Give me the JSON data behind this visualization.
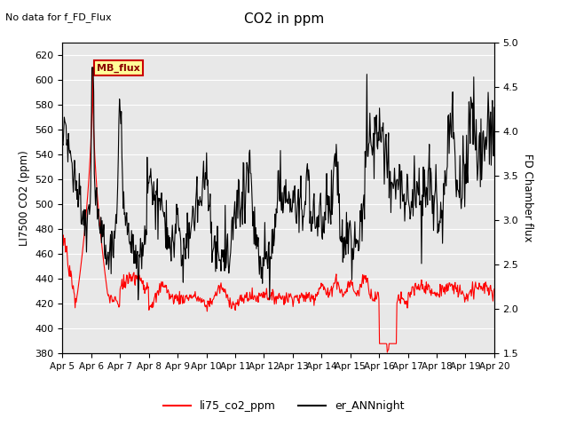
{
  "title": "CO2 in ppm",
  "top_left_text": "No data for f_FD_Flux",
  "ylabel_left": "LI7500 CO2 (ppm)",
  "ylabel_right": "FD Chamber flux",
  "ylim_left": [
    380,
    630
  ],
  "ylim_right": [
    1.5,
    5.0
  ],
  "yticks_left": [
    380,
    400,
    420,
    440,
    460,
    480,
    500,
    520,
    540,
    560,
    580,
    600,
    620
  ],
  "yticks_right": [
    1.5,
    2.0,
    2.5,
    3.0,
    3.5,
    4.0,
    4.5,
    5.0
  ],
  "xtick_labels": [
    "Apr 5",
    "Apr 6",
    "Apr 7",
    "Apr 8",
    "Apr 9",
    "Apr 10",
    "Apr 11",
    "Apr 12",
    "Apr 13",
    "Apr 14",
    "Apr 15",
    "Apr 16",
    "Apr 17",
    "Apr 18",
    "Apr 19",
    "Apr 20"
  ],
  "legend_labels": [
    "li75_co2_ppm",
    "er_ANNnight"
  ],
  "legend_colors": [
    "red",
    "black"
  ],
  "line_color_red": "#ff0000",
  "line_color_black": "#000000",
  "bg_color": "#e8e8e8",
  "mb_flux_box_color": "#ffff99",
  "mb_flux_text": "MB_flux",
  "n_points": 720
}
